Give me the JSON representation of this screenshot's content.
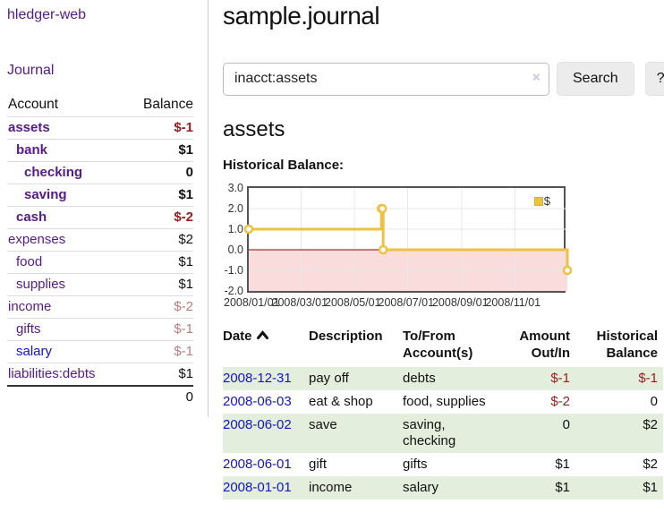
{
  "colors": {
    "link_purple": "#551a8b",
    "link_blue": "#1414cc",
    "negative_strong": "#9b1c1c",
    "negative_muted": "#bd7d7d",
    "row_stripe_green": "#e3eedd",
    "chart_series_gold": "#EDC240",
    "chart_negative_fill": "#fadcdc",
    "chart_zero_line": "#8b0000",
    "chart_grid": "#e8e8e8",
    "chart_border": "#545454"
  },
  "sidebar": {
    "app_title": "hledger-web",
    "journal_link": "Journal",
    "table": {
      "account_header": "Account",
      "balance_header": "Balance",
      "accounts": [
        {
          "name": "assets",
          "depth": 1,
          "bold": true,
          "balance": "$-1",
          "negative": "strong"
        },
        {
          "name": "bank",
          "depth": 2,
          "bold": true,
          "balance": "$1"
        },
        {
          "name": "checking",
          "depth": 3,
          "bold": true,
          "balance": "0"
        },
        {
          "name": "saving",
          "depth": 3,
          "bold": true,
          "balance": "$1"
        },
        {
          "name": "cash",
          "depth": 2,
          "bold": true,
          "balance": "$-2",
          "negative": "strong"
        },
        {
          "name": "expenses",
          "depth": 1,
          "bold": false,
          "balance": "$2"
        },
        {
          "name": "food",
          "depth": 2,
          "bold": false,
          "balance": "$1"
        },
        {
          "name": "supplies",
          "depth": 2,
          "bold": false,
          "balance": "$1"
        },
        {
          "name": "income",
          "depth": 1,
          "bold": false,
          "balance": "$-2",
          "negative": "muted"
        },
        {
          "name": "gifts",
          "depth": 2,
          "bold": false,
          "balance": "$-1",
          "negative": "muted"
        },
        {
          "name": "salary",
          "depth": 2,
          "bold": false,
          "balance": "$-1",
          "negative": "muted",
          "link_color": "blue"
        },
        {
          "name": "liabilities:debts",
          "depth": 1,
          "bold": false,
          "balance": "$1"
        }
      ],
      "total": "0"
    }
  },
  "main": {
    "title": "sample.journal",
    "search": {
      "value": "inacct:assets",
      "clear_icon": "×",
      "button_label": "Search",
      "help_label": "?"
    },
    "account_heading": "assets",
    "chart_label": "Historical Balance:"
  },
  "chart_data": {
    "type": "line",
    "step": true,
    "title": "Historical Balance",
    "legend": [
      {
        "label": "$",
        "color": "#EDC240"
      }
    ],
    "legend_position": "top-right",
    "grid": true,
    "xlim": [
      "2008-01-01",
      "2008-12-31"
    ],
    "ylim": [
      -2,
      3
    ],
    "yticks": [
      3.0,
      2.0,
      1.0,
      0.0,
      -1.0,
      -2.0
    ],
    "xticks": [
      "2008/01/01",
      "2008/03/01",
      "2008/05/01",
      "2008/07/01",
      "2008/09/01",
      "2008/11/01"
    ],
    "series": [
      {
        "name": "$",
        "points": [
          {
            "x": "2008-01-01",
            "y": 1
          },
          {
            "x": "2008-06-01",
            "y": 2
          },
          {
            "x": "2008-06-02",
            "y": 2
          },
          {
            "x": "2008-06-03",
            "y": 0
          },
          {
            "x": "2008-12-31",
            "y": -1
          }
        ]
      }
    ]
  },
  "register": {
    "columns": [
      {
        "line1": "Date",
        "line2": "",
        "align": "left",
        "sorted_ascending": true
      },
      {
        "line1": "Description",
        "line2": "",
        "align": "left"
      },
      {
        "line1": "To/From",
        "line2": "Account(s)",
        "align": "left"
      },
      {
        "line1": "Amount",
        "line2": "Out/In",
        "align": "right"
      },
      {
        "line1": "Historical",
        "line2": "Balance",
        "align": "right"
      }
    ],
    "rows": [
      {
        "date": "2008-12-31",
        "description": "pay off",
        "accounts": "debts",
        "amount": "$-1",
        "amount_negative": true,
        "balance": "$-1",
        "balance_negative": true,
        "shaded": true
      },
      {
        "date": "2008-06-03",
        "description": "eat & shop",
        "accounts": "food, supplies",
        "amount": "$-2",
        "amount_negative": true,
        "balance": "0",
        "balance_negative": false,
        "shaded": false
      },
      {
        "date": "2008-06-02",
        "description": "save",
        "accounts": "saving, checking",
        "amount": "0",
        "amount_negative": false,
        "balance": "$2",
        "balance_negative": false,
        "shaded": true
      },
      {
        "date": "2008-06-01",
        "description": "gift",
        "accounts": "gifts",
        "amount": "$1",
        "amount_negative": false,
        "balance": "$2",
        "balance_negative": false,
        "shaded": false
      },
      {
        "date": "2008-01-01",
        "description": "income",
        "accounts": "salary",
        "amount": "$1",
        "amount_negative": false,
        "balance": "$1",
        "balance_negative": false,
        "shaded": true
      }
    ]
  }
}
